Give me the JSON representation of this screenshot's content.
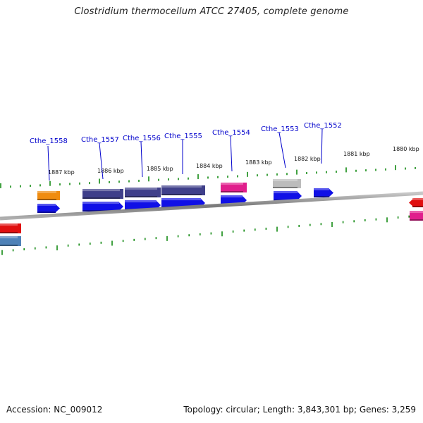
{
  "title": "Clostridium thermocellum ATCC 27405, complete genome",
  "accession": "Accession: NC_009012",
  "summary": "Topology: circular; Length: 3,843,301 bp; Genes: 3,259",
  "colors": {
    "backbone": "#8a8a8a",
    "tick": "#138a13",
    "cds": "#1010e6",
    "gene_label": "#0000cc",
    "orange": "#f08c10",
    "purple": "#3f3f8a",
    "pink": "#e01e8c",
    "gray": "#bcbcbc",
    "red": "#e01010",
    "steelblue": "#4f82b8"
  },
  "kbp_labels": [
    "1887 kbp",
    "1886 kbp",
    "1885 kbp",
    "1884 kbp",
    "1883 kbp",
    "1882 kbp",
    "1881 kbp",
    "1880 kbp"
  ],
  "gene_labels": [
    "Cthe_1558",
    "Cthe_1557",
    "Cthe_1556",
    "Cthe_1555",
    "Cthe_1554",
    "Cthe_1553",
    "Cthe_1552"
  ]
}
